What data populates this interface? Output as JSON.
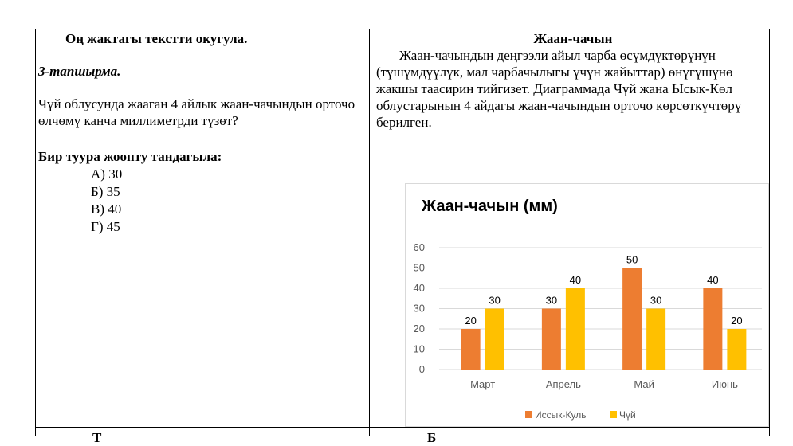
{
  "left": {
    "title": "Оң жактагы текстти окугула.",
    "task_label": "3-тапшырма.",
    "question": "Чүй облусунда жааган 4 айлык жаан-чачындын орточо өлчөмү канча миллиметрди түзөт?",
    "instruction": "Бир туура жоопту тандагыла:",
    "options": [
      "А) 30",
      "Б) 35",
      "В) 40",
      "Г) 45"
    ]
  },
  "right": {
    "title": "Жаан-чачын",
    "passage": "Жаан-чачындын деңгээли айыл чарба өсүмдүктөрүнүн (түшүмдүүлүк, мал чарбачылыгы үчүн жайыттар) өнүгүшүнө жакшы таасирин тийгизет. Диаграммада Чүй жана Ысык-Көл облустарынын 4 айдагы жаан-чачындын орточо көрсөткүчтөрү берилген."
  },
  "bottom_fragments": {
    "left": "Т",
    "right": "Б"
  },
  "chart_data": {
    "type": "bar",
    "title": "Жаан-чачын (мм)",
    "categories": [
      "Март",
      "Апрель",
      "Май",
      "Июнь"
    ],
    "series": [
      {
        "name": "Иссык-Куль",
        "values": [
          20,
          30,
          50,
          40
        ],
        "color": "#ED7D31"
      },
      {
        "name": "Чүй",
        "values": [
          30,
          40,
          30,
          20
        ],
        "color": "#FFC000"
      }
    ],
    "ylim": [
      0,
      60
    ],
    "yticks": [
      "0",
      "10",
      "20",
      "30",
      "40",
      "50",
      "60"
    ],
    "grid": true,
    "legend": "bottom",
    "data_labels": true
  }
}
